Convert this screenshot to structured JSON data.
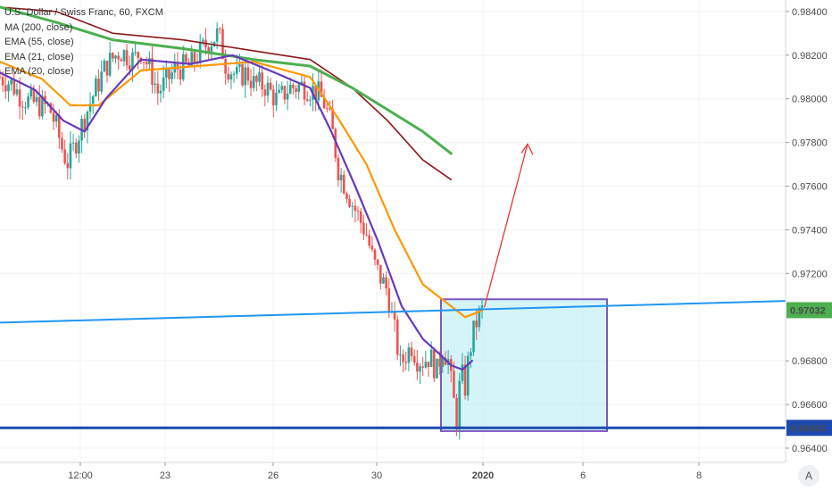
{
  "legend": {
    "title": "U.S. Dollar / Swiss Franc, 60, FXCM",
    "ma200": "MA (200, close)",
    "ema55": "EMA (55, close)",
    "ema_a": "EMA (21, close)",
    "ema_b": "EMA (20, close)"
  },
  "auto_scale_label": "A",
  "colors": {
    "up": "#26a69a",
    "down": "#ef5350",
    "ma200": "#8b1a1a",
    "ema55": "#4caf50",
    "ema_orange": "#ff9800",
    "ema_purple": "#673ab7",
    "trend_line": "#2196f3",
    "support_line": "#1e4ab0",
    "box_fill": "#b2ebf2",
    "box_border": "#7e57c2",
    "arrow": "#e53935"
  },
  "chart_data": {
    "type": "candlestick",
    "symbol": "USD/CHF",
    "interval": "60",
    "source": "FXCM",
    "y_range": [
      0.964,
      0.9842
    ],
    "y_ticks": [
      "0.98400",
      "0.98200",
      "0.98000",
      "0.97800",
      "0.97600",
      "0.97400",
      "0.97200",
      "0.96800",
      "0.96600",
      "0.96400"
    ],
    "x_ticks": [
      "12:00",
      "23",
      "26",
      "30",
      "2020",
      "6",
      "8"
    ],
    "last_price": "0.97032",
    "support_price": "0.96493",
    "segments": [
      [
        0,
        0.981
      ],
      [
        8,
        0.9807
      ],
      [
        15,
        0.9801
      ],
      [
        20,
        0.9799
      ],
      [
        28,
        0.9797
      ],
      [
        35,
        0.9796
      ],
      [
        40,
        0.9787
      ],
      [
        45,
        0.9775
      ],
      [
        48,
        0.9771
      ],
      [
        52,
        0.9777
      ],
      [
        58,
        0.9788
      ],
      [
        65,
        0.98
      ],
      [
        75,
        0.9815
      ],
      [
        85,
        0.9822
      ],
      [
        95,
        0.9818
      ],
      [
        100,
        0.9822
      ],
      [
        108,
        0.9811
      ],
      [
        112,
        0.9803
      ],
      [
        118,
        0.9808
      ],
      [
        125,
        0.9814
      ],
      [
        135,
        0.9815
      ],
      [
        145,
        0.9824
      ],
      [
        155,
        0.983
      ],
      [
        160,
        0.9816
      ],
      [
        168,
        0.981
      ],
      [
        175,
        0.9812
      ],
      [
        180,
        0.9807
      ],
      [
        188,
        0.9806
      ],
      [
        197,
        0.9799
      ],
      [
        205,
        0.9805
      ],
      [
        215,
        0.9806
      ],
      [
        225,
        0.9803
      ],
      [
        230,
        0.9798
      ],
      [
        235,
        0.9788
      ],
      [
        240,
        0.9768
      ],
      [
        245,
        0.976
      ],
      [
        250,
        0.9752
      ],
      [
        255,
        0.9745
      ],
      [
        260,
        0.9738
      ],
      [
        265,
        0.9725
      ],
      [
        270,
        0.9718
      ],
      [
        275,
        0.9712
      ],
      [
        278,
        0.97
      ],
      [
        281,
        0.969
      ],
      [
        284,
        0.9678
      ],
      [
        288,
        0.9683
      ],
      [
        292,
        0.9687
      ],
      [
        296,
        0.9681
      ],
      [
        300,
        0.968
      ],
      [
        305,
        0.9682
      ],
      [
        310,
        0.9675
      ],
      [
        314,
        0.9686
      ],
      [
        318,
        0.968
      ],
      [
        321,
        0.9665
      ],
      [
        324,
        0.9653
      ],
      [
        327,
        0.9675
      ],
      [
        330,
        0.9668
      ],
      [
        333,
        0.9684
      ],
      [
        336,
        0.9693
      ],
      [
        339,
        0.97
      ],
      [
        342,
        0.9703
      ]
    ],
    "series": [
      {
        "name": "MA (200, close)",
        "points": [
          [
            0,
            0.9842
          ],
          [
            40,
            0.984
          ],
          [
            80,
            0.983
          ],
          [
            130,
            0.9827
          ],
          [
            180,
            0.9822
          ],
          [
            220,
            0.9818
          ],
          [
            250,
            0.9805
          ],
          [
            275,
            0.979
          ],
          [
            300,
            0.9772
          ],
          [
            320,
            0.9763
          ]
        ]
      },
      {
        "name": "EMA (55, close)",
        "points": [
          [
            0,
            0.9842
          ],
          [
            40,
            0.9835
          ],
          [
            80,
            0.9827
          ],
          [
            130,
            0.9823
          ],
          [
            180,
            0.9818
          ],
          [
            220,
            0.9815
          ],
          [
            250,
            0.9805
          ],
          [
            275,
            0.9795
          ],
          [
            300,
            0.9785
          ],
          [
            320,
            0.9775
          ]
        ]
      },
      {
        "name": "EMA (21, close)",
        "points": [
          [
            0,
            0.9817
          ],
          [
            30,
            0.9809
          ],
          [
            50,
            0.9797
          ],
          [
            70,
            0.9797
          ],
          [
            100,
            0.9813
          ],
          [
            140,
            0.9815
          ],
          [
            180,
            0.9817
          ],
          [
            220,
            0.981
          ],
          [
            240,
            0.9791
          ],
          [
            260,
            0.977
          ],
          [
            280,
            0.974
          ],
          [
            300,
            0.9715
          ],
          [
            320,
            0.9705
          ],
          [
            330,
            0.97
          ],
          [
            342,
            0.9703
          ]
        ]
      },
      {
        "name": "EMA (20, close)",
        "points": [
          [
            0,
            0.9812
          ],
          [
            25,
            0.9804
          ],
          [
            45,
            0.979
          ],
          [
            60,
            0.9785
          ],
          [
            75,
            0.98
          ],
          [
            100,
            0.9818
          ],
          [
            135,
            0.9816
          ],
          [
            165,
            0.982
          ],
          [
            195,
            0.9812
          ],
          [
            220,
            0.9805
          ],
          [
            235,
            0.9785
          ],
          [
            252,
            0.976
          ],
          [
            268,
            0.9735
          ],
          [
            285,
            0.9705
          ],
          [
            300,
            0.969
          ],
          [
            312,
            0.9683
          ],
          [
            320,
            0.9678
          ],
          [
            328,
            0.9676
          ],
          [
            335,
            0.968
          ]
        ]
      }
    ],
    "drawings": {
      "trend_line": [
        [
          0,
          0.96975
        ],
        [
          520,
          0.97074
        ]
      ],
      "support_line": 0.96493,
      "box": {
        "x0": 290,
        "x1": 403,
        "y0": 0.96478,
        "y1": 0.97082
      },
      "arrow": {
        "from": [
          331,
          0.97045
        ],
        "to": [
          353,
          0.97793
        ]
      }
    }
  }
}
